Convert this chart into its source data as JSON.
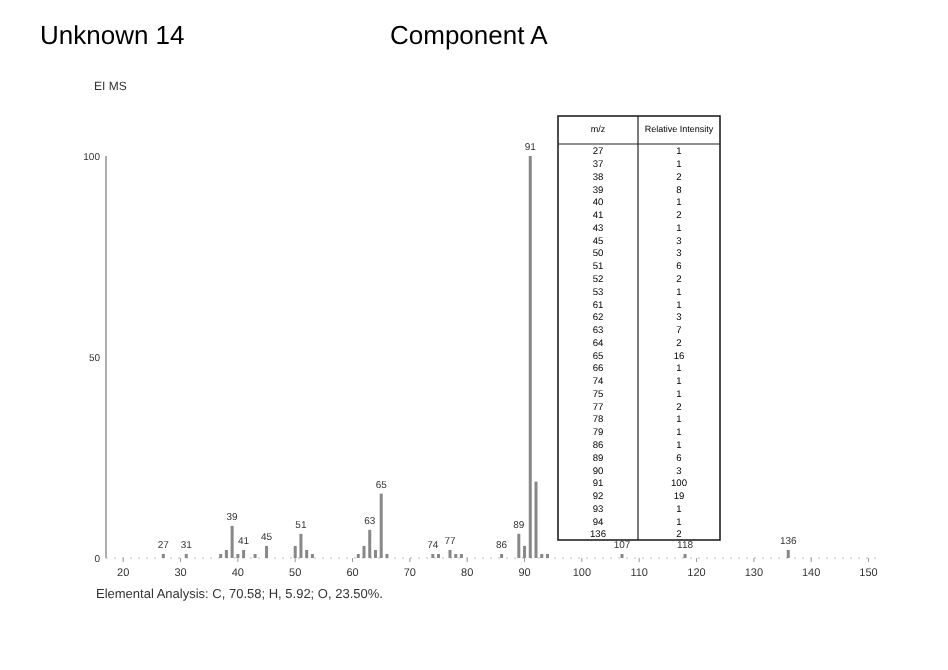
{
  "chart_data": [
    {
      "type": "bar",
      "title": "Component A",
      "subtitle": "Unknown 14",
      "ylabel": "EI MS",
      "annotations": [
        "Elemental Analysis: C, 70.58; H, 5.92; O, 23.50%.",
        {
          "text": "27",
          "x": 27,
          "y": 1
        },
        {
          "text": "31",
          "x": 31,
          "y": 1
        },
        {
          "text": "39",
          "x": 39,
          "y": 8
        },
        {
          "text": "41",
          "x": 41,
          "y": 2
        },
        {
          "text": "45",
          "x": 45,
          "y": 3
        },
        {
          "text": "51",
          "x": 51,
          "y": 6
        },
        {
          "text": "63",
          "x": 63,
          "y": 7
        },
        {
          "text": "65",
          "x": 65,
          "y": 16
        },
        {
          "text": "74",
          "x": 74,
          "y": 1
        },
        {
          "text": "77",
          "x": 77,
          "y": 2
        },
        {
          "text": "86",
          "x": 86,
          "y": 1
        },
        {
          "text": "89",
          "x": 89,
          "y": 6
        },
        {
          "text": "91",
          "x": 91,
          "y": 100
        },
        {
          "text": "107",
          "x": 107,
          "y": 1
        },
        {
          "text": "118",
          "x": 118,
          "y": 1
        },
        {
          "text": "136",
          "x": 136,
          "y": 2
        }
      ],
      "xlim": [
        17,
        152
      ],
      "xticks": [
        20,
        30,
        40,
        50,
        60,
        70,
        80,
        90,
        100,
        110,
        120,
        130,
        140,
        150
      ],
      "ylim": [
        0,
        100
      ],
      "yticks": [
        0,
        50,
        100
      ],
      "series": [
        {
          "color": "#888888",
          "x": [
            27,
            37,
            38,
            39,
            40,
            41,
            43,
            45,
            50,
            51,
            52,
            53,
            61,
            62,
            63,
            64,
            65,
            66,
            74,
            75,
            77,
            78,
            79,
            86,
            89,
            90,
            91,
            92,
            93,
            94,
            136
          ],
          "values": [
            1,
            1,
            2,
            8,
            1,
            2,
            1,
            3,
            3,
            6,
            2,
            1,
            1,
            3,
            7,
            2,
            16,
            1,
            1,
            1,
            2,
            1,
            1,
            1,
            6,
            3,
            100,
            19,
            1,
            1,
            2
          ]
        },
        {
          "color": "#888888",
          "x": [
            31,
            107,
            118
          ],
          "values": [
            1,
            1,
            1
          ]
        }
      ]
    },
    {
      "type": "other",
      "data_labels": true,
      "xlabel": "m/z",
      "ylabel": "Relative Intensity",
      "categories": [
        "27",
        "37",
        "38",
        "39",
        "40",
        "41",
        "43",
        "45",
        "50",
        "51",
        "52",
        "53",
        "61",
        "62",
        "63",
        "64",
        "65",
        "66",
        "74",
        "75",
        "77",
        "78",
        "79",
        "86",
        "89",
        "90",
        "91",
        "92",
        "93",
        "94",
        "136"
      ],
      "values": [
        1,
        1,
        2,
        8,
        1,
        2,
        1,
        3,
        3,
        6,
        2,
        1,
        1,
        3,
        7,
        2,
        16,
        1,
        1,
        1,
        2,
        1,
        1,
        1,
        6,
        3,
        100,
        19,
        1,
        1,
        2
      ]
    }
  ]
}
